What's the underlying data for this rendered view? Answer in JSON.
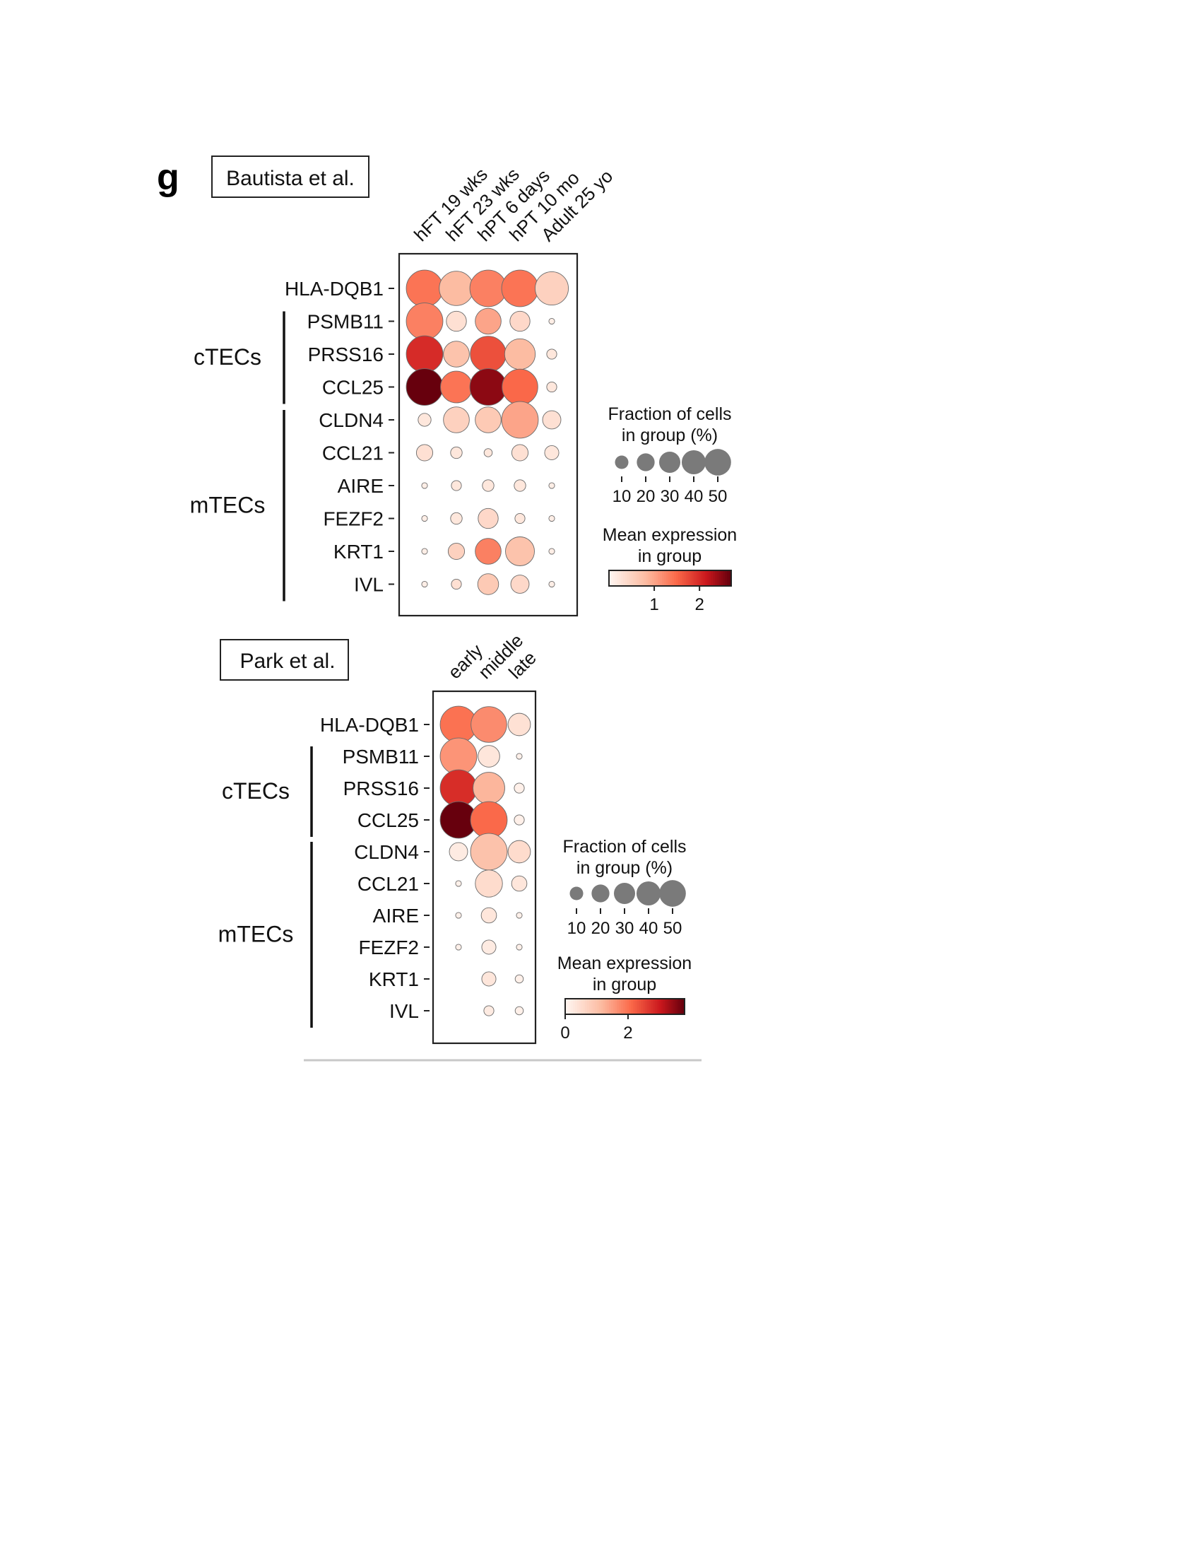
{
  "panel_label": "g",
  "chart_data": [
    {
      "type": "dotplot",
      "title": "Bautista et al.",
      "categories": [
        "hFT 19 wks",
        "hFT 23 wks",
        "hPT 6 days",
        "hPT 10 mo",
        "Adult 25 yo"
      ],
      "genes": [
        "HLA-DQB1",
        "PSMB11",
        "PRSS16",
        "CCL25",
        "CLDN4",
        "CCL21",
        "AIRE",
        "FEZF2",
        "KRT1",
        "IVL"
      ],
      "gene_groups": [
        {
          "label": "cTECs",
          "genes": [
            "PSMB11",
            "PRSS16",
            "CCL25"
          ]
        },
        {
          "label": "mTECs",
          "genes": [
            "CLDN4",
            "CCL21",
            "AIRE",
            "FEZF2",
            "KRT1",
            "IVL"
          ]
        }
      ],
      "fraction": [
        [
          40,
          35,
          40,
          40,
          33
        ],
        [
          40,
          12,
          20,
          12,
          1
        ],
        [
          40,
          20,
          38,
          28,
          3
        ],
        [
          40,
          30,
          40,
          38,
          3
        ],
        [
          5,
          20,
          20,
          40,
          10
        ],
        [
          8,
          4,
          2,
          8,
          6
        ],
        [
          1,
          3,
          4,
          4,
          1
        ],
        [
          1,
          4,
          12,
          3,
          1
        ],
        [
          1,
          8,
          20,
          25,
          1
        ],
        [
          1,
          3,
          13,
          10,
          1
        ]
      ],
      "expression": [
        [
          1.4,
          0.8,
          1.3,
          1.4,
          0.5
        ],
        [
          1.3,
          0.3,
          1.0,
          0.4,
          0.1
        ],
        [
          2.0,
          0.7,
          1.7,
          0.8,
          0.2
        ],
        [
          3.2,
          1.4,
          2.5,
          1.5,
          0.2
        ],
        [
          0.2,
          0.5,
          0.6,
          1.0,
          0.3
        ],
        [
          0.3,
          0.2,
          0.2,
          0.3,
          0.2
        ],
        [
          0.1,
          0.2,
          0.2,
          0.2,
          0.1
        ],
        [
          0.1,
          0.2,
          0.4,
          0.2,
          0.1
        ],
        [
          0.1,
          0.5,
          1.3,
          0.7,
          0.1
        ],
        [
          0.1,
          0.3,
          0.6,
          0.4,
          0.1
        ]
      ],
      "size_legend": {
        "title_lines": [
          "Fraction of cells",
          "in group (%)"
        ],
        "values": [
          10,
          20,
          30,
          40,
          50
        ]
      },
      "color_legend": {
        "title_lines": [
          "Mean expression",
          "in group"
        ],
        "range": [
          0,
          2.7
        ],
        "ticks": [
          1,
          2
        ]
      }
    },
    {
      "type": "dotplot",
      "title": "Park et al.",
      "categories": [
        "early",
        "middle",
        "late"
      ],
      "genes": [
        "HLA-DQB1",
        "PSMB11",
        "PRSS16",
        "CCL25",
        "CLDN4",
        "CCL21",
        "AIRE",
        "FEZF2",
        "KRT1",
        "IVL"
      ],
      "gene_groups": [
        {
          "label": "cTECs",
          "genes": [
            "PSMB11",
            "PRSS16",
            "CCL25"
          ]
        },
        {
          "label": "mTECs",
          "genes": [
            "CLDN4",
            "CCL21",
            "AIRE",
            "FEZF2",
            "KRT1",
            "IVL"
          ]
        }
      ],
      "fraction": [
        [
          40,
          38,
          15
        ],
        [
          40,
          14,
          1
        ],
        [
          40,
          30,
          3
        ],
        [
          40,
          40,
          3
        ],
        [
          10,
          40,
          15
        ],
        [
          1,
          22,
          7
        ],
        [
          1,
          7,
          1
        ],
        [
          1,
          6,
          1
        ],
        [
          0,
          6,
          2
        ],
        [
          0,
          3,
          2
        ]
      ],
      "expression": [
        [
          2.0,
          1.7,
          0.4
        ],
        [
          1.6,
          0.3,
          0.1
        ],
        [
          2.8,
          1.2,
          0.1
        ],
        [
          3.8,
          2.1,
          0.1
        ],
        [
          0.2,
          1.0,
          0.5
        ],
        [
          0.1,
          0.5,
          0.3
        ],
        [
          0.1,
          0.3,
          0.1
        ],
        [
          0.1,
          0.2,
          0.1
        ],
        [
          0.1,
          0.3,
          0.1
        ],
        [
          0.1,
          0.2,
          0.1
        ]
      ],
      "size_legend": {
        "title_lines": [
          "Fraction of cells",
          "in group (%)"
        ],
        "values": [
          10,
          20,
          30,
          40,
          50
        ]
      },
      "color_legend": {
        "title_lines": [
          "Mean expression",
          "in group"
        ],
        "range": [
          0,
          3.8
        ],
        "ticks": [
          0,
          2
        ]
      }
    }
  ]
}
